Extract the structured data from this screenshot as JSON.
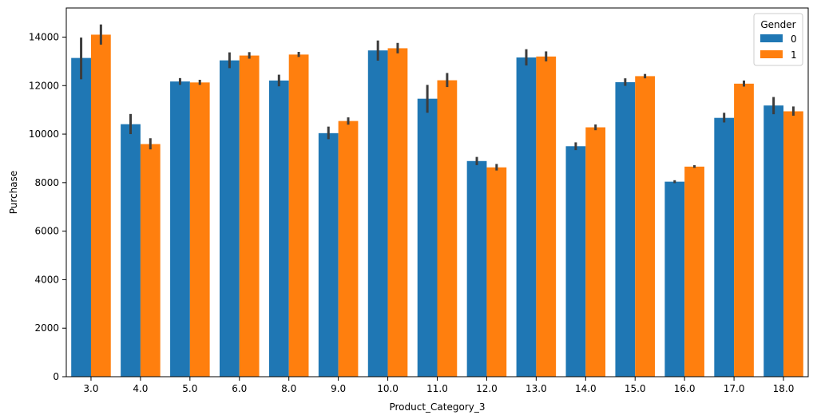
{
  "chart_data": {
    "type": "bar",
    "xlabel": "Product_Category_3",
    "ylabel": "Purchase",
    "ylim": [
      0,
      15200
    ],
    "yticks": [
      0,
      2000,
      4000,
      6000,
      8000,
      10000,
      12000,
      14000
    ],
    "categories": [
      "3.0",
      "4.0",
      "5.0",
      "6.0",
      "8.0",
      "9.0",
      "10.0",
      "11.0",
      "12.0",
      "13.0",
      "14.0",
      "15.0",
      "16.0",
      "17.0",
      "18.0"
    ],
    "legend": {
      "title": "Gender",
      "placement": "top-right"
    },
    "grid": false,
    "series": [
      {
        "name": "0",
        "color": "#1f77b4",
        "values": [
          13140,
          10410,
          12170,
          13040,
          12210,
          10040,
          13450,
          11460,
          8890,
          13160,
          9500,
          12140,
          8040,
          10670,
          11180
        ],
        "error_low": [
          12260,
          10000,
          12030,
          12720,
          11970,
          9790,
          13030,
          10880,
          8720,
          12830,
          9340,
          11990,
          7980,
          10480,
          10820
        ],
        "error_high": [
          13980,
          10830,
          12310,
          13370,
          12450,
          10310,
          13860,
          12030,
          9060,
          13500,
          9660,
          12300,
          8100,
          10880,
          11530
        ]
      },
      {
        "name": "1",
        "color": "#ff7f0e",
        "values": [
          14100,
          9590,
          12130,
          13240,
          13280,
          10540,
          13540,
          12220,
          8630,
          13200,
          10280,
          12390,
          8660,
          12080,
          10940
        ],
        "error_low": [
          13690,
          9370,
          12030,
          13110,
          13180,
          10390,
          13330,
          11940,
          8500,
          13000,
          10160,
          12300,
          8610,
          11960,
          10760
        ],
        "error_high": [
          14520,
          9830,
          12240,
          13380,
          13390,
          10690,
          13760,
          12520,
          8770,
          13410,
          10400,
          12480,
          8720,
          12210,
          11140
        ]
      }
    ]
  }
}
